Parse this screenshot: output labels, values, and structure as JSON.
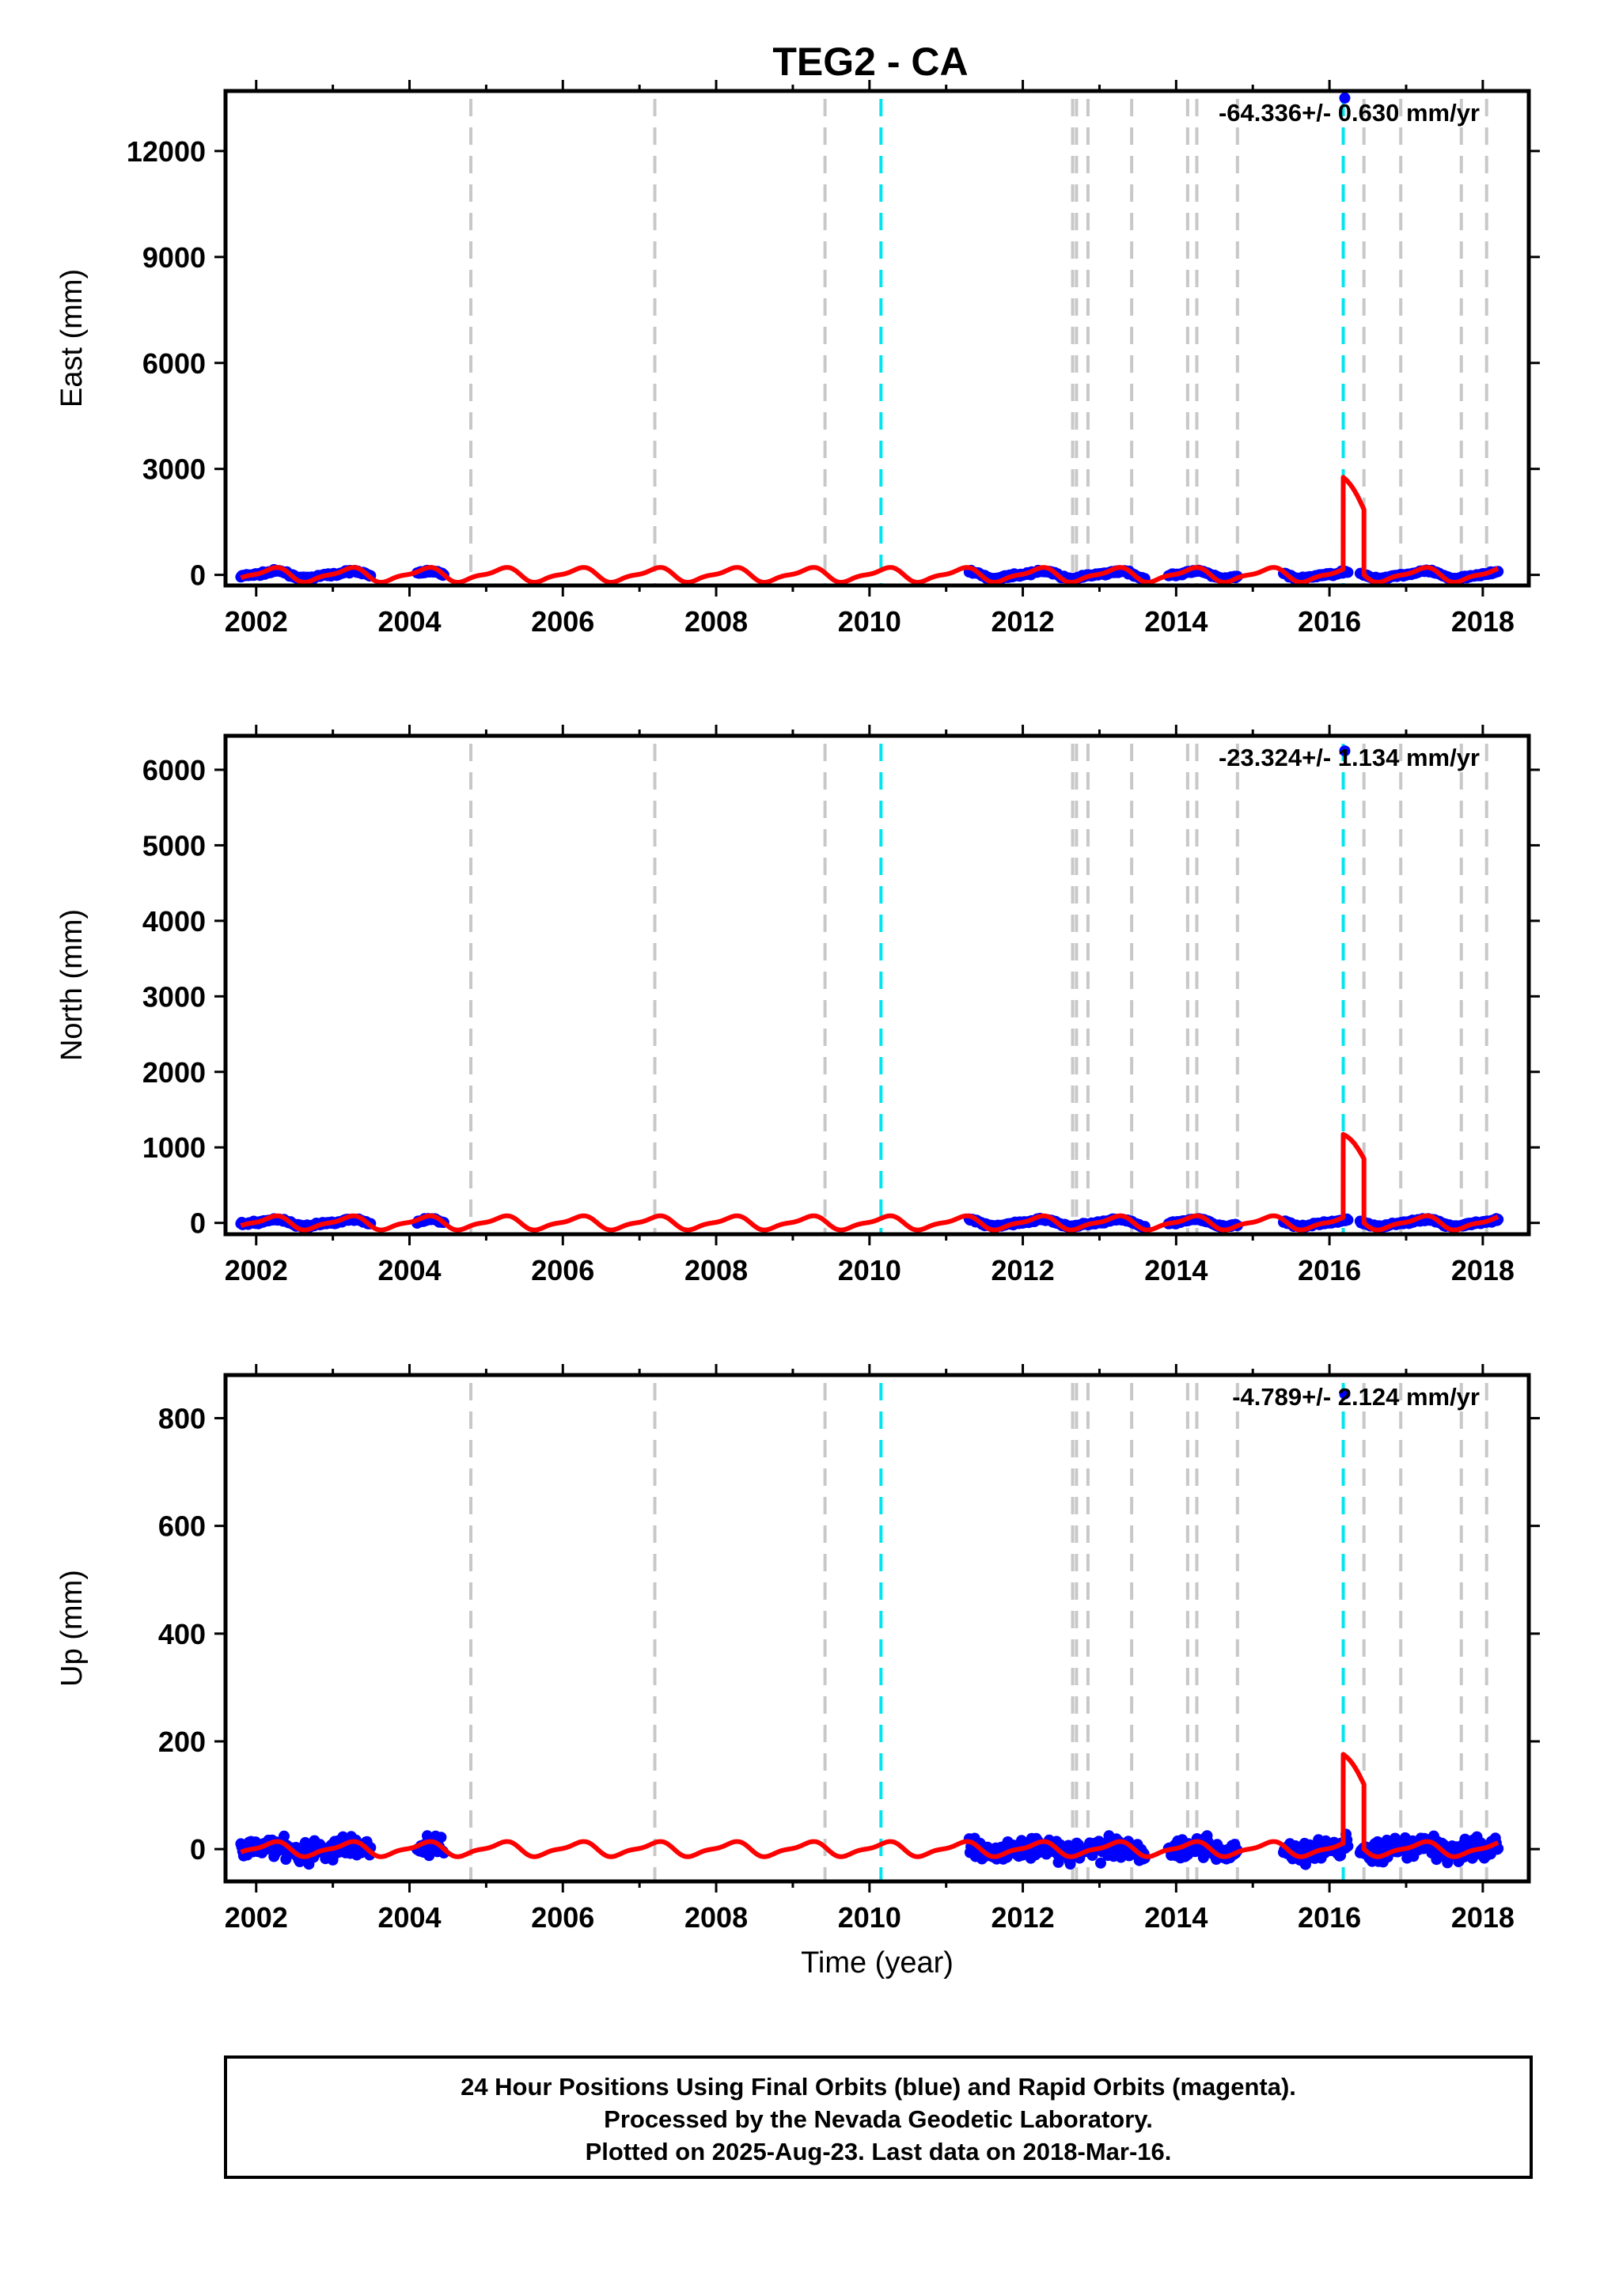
{
  "title": "TEG2 - CA",
  "footer": {
    "line1": "24 Hour Positions Using Final Orbits (blue) and Rapid Orbits (magenta).",
    "line2": "Processed by the Nevada Geodetic Laboratory.",
    "line3": "Plotted on 2025-Aug-23. Last data on 2018-Mar-16."
  },
  "colors": {
    "final_orbits": "#0000ff",
    "model": "#ff0000",
    "equipment_change": "#c8c8c8",
    "earthquake": "#00e5ee"
  },
  "chart_data": [
    {
      "type": "scatter",
      "component": "East",
      "ylabel": "East (mm)",
      "xlabel": "",
      "rate_label": "-64.336+/- 0.630 mm/yr",
      "xlim": [
        2001.6,
        2018.6
      ],
      "ylim": [
        -300,
        13700
      ],
      "yticks": [
        0,
        3000,
        6000,
        9000,
        12000
      ],
      "xticks": [
        2002,
        2004,
        2006,
        2008,
        2010,
        2012,
        2014,
        2016,
        2018
      ],
      "amp": 180,
      "offset_peak": 2600,
      "offset_step": 1850,
      "noise": 25,
      "outlier": {
        "x": 2016.2,
        "y": 13500
      }
    },
    {
      "type": "scatter",
      "component": "North",
      "ylabel": "North (mm)",
      "xlabel": "",
      "rate_label": "-23.324+/- 1.134 mm/yr",
      "xlim": [
        2001.6,
        2018.6
      ],
      "ylim": [
        -150,
        6450
      ],
      "yticks": [
        0,
        1000,
        2000,
        3000,
        4000,
        5000,
        6000
      ],
      "xticks": [
        2002,
        2004,
        2006,
        2008,
        2010,
        2012,
        2014,
        2016,
        2018
      ],
      "amp": 80,
      "offset_peak": 1100,
      "offset_step": 850,
      "noise": 12,
      "outlier": {
        "x": 2016.2,
        "y": 6250
      }
    },
    {
      "type": "scatter",
      "component": "Up",
      "ylabel": "Up (mm)",
      "xlabel": "Time (year)",
      "rate_label": "-4.789+/- 2.124 mm/yr",
      "xlim": [
        2001.6,
        2018.6
      ],
      "ylim": [
        -60,
        880
      ],
      "yticks": [
        0,
        200,
        400,
        600,
        800
      ],
      "xticks": [
        2002,
        2004,
        2006,
        2008,
        2010,
        2012,
        2014,
        2016,
        2018
      ],
      "amp": 12,
      "offset_peak": 165,
      "offset_step": 120,
      "noise": 14,
      "outlier": {
        "x": 2016.2,
        "y": 845
      }
    }
  ],
  "events": {
    "equipment_change_years": [
      2004.8,
      2007.2,
      2009.42,
      2012.65,
      2012.7,
      2012.85,
      2013.42,
      2014.15,
      2014.27,
      2014.8,
      2016.45,
      2016.93,
      2017.72,
      2018.05
    ],
    "earthquake_years": [
      2010.15,
      2016.18
    ]
  },
  "data_segments": [
    [
      2001.8,
      2003.5
    ],
    [
      2004.1,
      2004.45
    ],
    [
      2011.3,
      2013.6
    ],
    [
      2013.9,
      2014.8
    ],
    [
      2015.4,
      2016.25
    ],
    [
      2016.4,
      2018.2
    ]
  ],
  "model_span": [
    2001.8,
    2018.2
  ],
  "offset_span": [
    2016.18,
    2016.45
  ]
}
